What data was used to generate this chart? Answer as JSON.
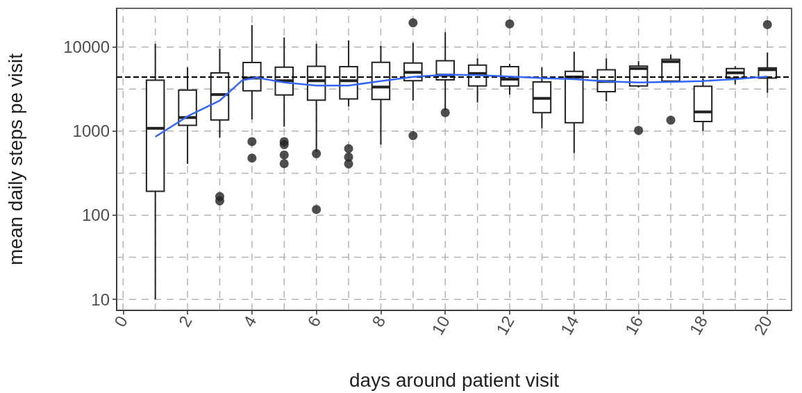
{
  "chart_data": {
    "type": "box",
    "xlabel": "days around patient visit",
    "ylabel": "mean daily steps pe visit",
    "xlim": [
      -0.2,
      20.75
    ],
    "xticks": [
      0,
      {
        "value": 1,
        "label": null
      },
      2,
      {
        "value": 3,
        "label": null
      },
      4,
      {
        "value": 5,
        "label": null
      },
      6,
      {
        "value": 7,
        "label": null
      },
      8,
      {
        "value": 9,
        "label": null
      },
      10,
      {
        "value": 11,
        "label": null
      },
      12,
      {
        "value": 13,
        "label": null
      },
      14,
      {
        "value": 15,
        "label": null
      },
      16,
      {
        "value": 17,
        "label": null
      },
      18,
      {
        "value": 19,
        "label": null
      },
      20
    ],
    "ylim": [
      7.4,
      28800
    ],
    "yticks": [
      10,
      {
        "value": 31.6,
        "label": null
      },
      100,
      {
        "value": 316,
        "label": null
      },
      1000,
      {
        "value": 3162,
        "label": null
      },
      10000
    ],
    "log": "y",
    "grid": true,
    "series": [
      {
        "color": "#222222",
        "x": [
          1,
          2,
          3,
          4,
          5,
          6,
          7,
          8,
          9,
          10,
          11,
          12,
          13,
          14,
          15,
          16,
          17,
          18,
          19,
          20
        ],
        "boxes": [
          {
            "low": 10,
            "q1": 193,
            "median": 1080,
            "q3": 4020,
            "high": 10900
          },
          {
            "low": 408,
            "q1": 1170,
            "median": 1450,
            "q3": 3080,
            "high": 5710
          },
          {
            "low": 832,
            "q1": 1360,
            "median": 2720,
            "q3": 4930,
            "high": 9530,
            "outliers": [
              167,
              148
            ]
          },
          {
            "low": 1380,
            "q1": 3010,
            "median": 4270,
            "q3": 6550,
            "high": 18200,
            "outliers": [
              750,
              478
            ]
          },
          {
            "low": 1130,
            "q1": 2690,
            "median": 3970,
            "q3": 5740,
            "high": 12970,
            "outliers": [
              750,
              690,
              520,
              410
            ]
          },
          {
            "low": 560,
            "q1": 2330,
            "median": 3970,
            "q3": 5890,
            "high": 10900,
            "outliers": [
              540,
              117
            ]
          },
          {
            "low": 1970,
            "q1": 2410,
            "median": 3970,
            "q3": 5830,
            "high": 11960,
            "outliers": [
              619,
              492,
              408
            ]
          },
          {
            "low": 692,
            "q1": 2380,
            "median": 3340,
            "q3": 6580,
            "high": 10300
          },
          {
            "low": 2310,
            "q1": 3970,
            "median": 4990,
            "q3": 6460,
            "high": 11200,
            "outliers": [
              19400,
              885
            ]
          },
          {
            "low": 1750,
            "q1": 4060,
            "median": 4630,
            "q3": 6870,
            "high": 14960,
            "outliers": [
              1660
            ]
          },
          {
            "low": 2190,
            "q1": 3440,
            "median": 4840,
            "q3": 6080,
            "high": 7310
          },
          {
            "low": 2720,
            "q1": 3440,
            "median": 4140,
            "q3": 5830,
            "high": 6300,
            "outliers": [
              18800
            ]
          },
          {
            "low": 1080,
            "q1": 1660,
            "median": 2450,
            "q3": 3850,
            "high": 5710
          },
          {
            "low": 547,
            "q1": 1260,
            "median": 4400,
            "q3": 5140,
            "high": 8790
          },
          {
            "low": 2260,
            "q1": 2950,
            "median": 3890,
            "q3": 5370,
            "high": 7310
          },
          {
            "low": 3300,
            "q1": 3440,
            "median": 5540,
            "q3": 5930,
            "high": 6790,
            "outliers": [
              1020
            ]
          },
          {
            "low": 3900,
            "q1": 3940,
            "median": 6700,
            "q3": 7110,
            "high": 8070,
            "outliers": [
              1350
            ]
          },
          {
            "low": 1000,
            "q1": 1300,
            "median": 1690,
            "q3": 3410,
            "high": 4270
          },
          {
            "low": 3610,
            "q1": 4270,
            "median": 4930,
            "q3": 5540,
            "high": 5900
          },
          {
            "low": 2860,
            "q1": 4270,
            "median": 5370,
            "q3": 5640,
            "high": 8600,
            "outliers": [
              18450
            ]
          }
        ]
      },
      {
        "type": "line",
        "color": "#3366ff",
        "x": [
          1,
          2,
          3,
          3.7,
          4.15,
          5,
          6,
          7,
          8,
          9,
          10,
          11,
          12,
          13,
          14,
          15,
          16,
          17,
          18,
          19,
          20
        ],
        "values": [
          857,
          1500,
          2310,
          4020,
          4330,
          3780,
          3480,
          3480,
          3940,
          4400,
          4690,
          4630,
          4460,
          4270,
          4140,
          3890,
          3780,
          3850,
          3940,
          4140,
          4460
        ]
      }
    ],
    "ref_lines": [
      {
        "axis": "y",
        "value": 4400,
        "label": null,
        "color": "#000000",
        "line_style": "dashed"
      }
    ]
  }
}
